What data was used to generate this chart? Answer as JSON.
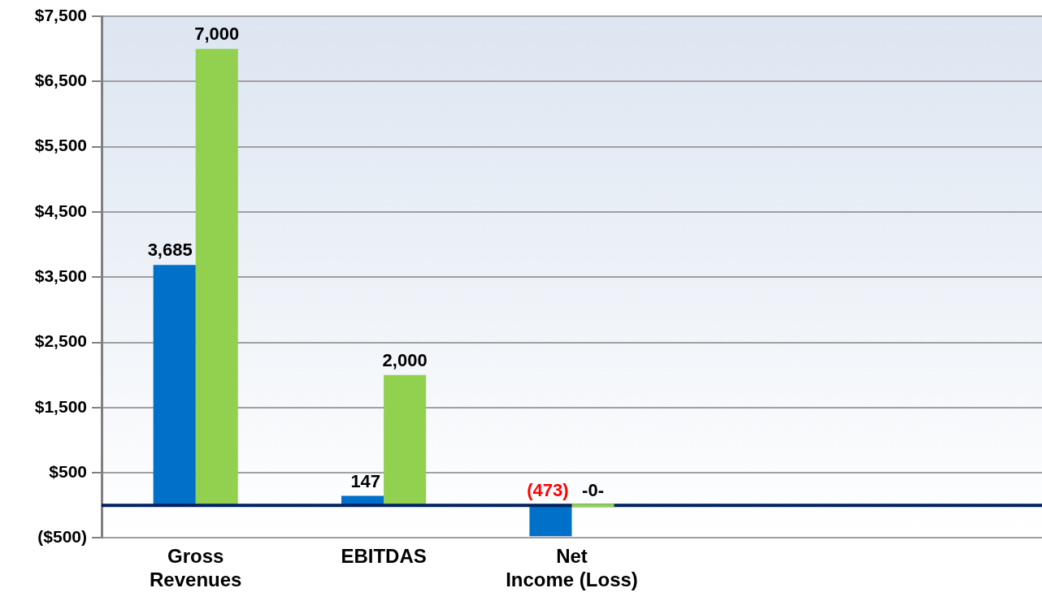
{
  "chart_data": {
    "type": "bar",
    "categories": [
      "Gross\nRevenues",
      "EBITDAS",
      "Net\nIncome (Loss)",
      null,
      null
    ],
    "series": [
      {
        "color": "#0070c8",
        "values": [
          3685,
          147,
          -473,
          null,
          null
        ],
        "value_labels": [
          "3,685",
          "147",
          "(473)",
          null,
          null
        ]
      },
      {
        "color": "#92d050",
        "values": [
          7000,
          2000,
          0,
          null,
          null
        ],
        "value_labels": [
          "7,000",
          "2,000",
          "-0-",
          null,
          null
        ]
      }
    ],
    "ylim": [
      -500,
      7500
    ],
    "yticks": [
      {
        "value": -500,
        "label": "($500)"
      },
      {
        "value": 500,
        "label": "$500"
      },
      {
        "value": 1500,
        "label": "$1,500"
      },
      {
        "value": 2500,
        "label": "$2,500"
      },
      {
        "value": 3500,
        "label": "$3,500"
      },
      {
        "value": 4500,
        "label": "$4,500"
      },
      {
        "value": 5500,
        "label": "$5,500"
      },
      {
        "value": 6500,
        "label": "$6,500"
      },
      {
        "value": 7500,
        "label": "$7,500"
      }
    ],
    "ref_lines": [
      {
        "axis": "y",
        "value": 0,
        "color": "#002060"
      }
    ],
    "grid": "y",
    "legend": false
  }
}
